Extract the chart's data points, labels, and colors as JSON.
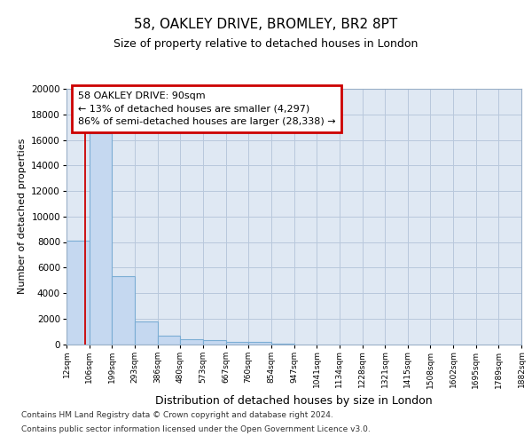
{
  "title_line1": "58, OAKLEY DRIVE, BROMLEY, BR2 8PT",
  "title_line2": "Size of property relative to detached houses in London",
  "xlabel": "Distribution of detached houses by size in London",
  "ylabel": "Number of detached properties",
  "annotation_line1": "58 OAKLEY DRIVE: 90sqm",
  "annotation_line2": "← 13% of detached houses are smaller (4,297)",
  "annotation_line3": "86% of semi-detached houses are larger (28,338) →",
  "property_size": 90,
  "bin_edges": [
    12,
    106,
    199,
    293,
    386,
    480,
    573,
    667,
    760,
    854,
    947,
    1041,
    1134,
    1228,
    1321,
    1415,
    1508,
    1602,
    1695,
    1789,
    1882
  ],
  "bar_heights": [
    8100,
    16500,
    5300,
    1750,
    680,
    350,
    280,
    200,
    170,
    50,
    0,
    0,
    0,
    0,
    0,
    0,
    0,
    0,
    0,
    0
  ],
  "bar_color": "#c5d8f0",
  "bar_edge_color": "#7badd4",
  "vline_color": "#cc0000",
  "annotation_box_edgecolor": "#cc0000",
  "plot_bg_color": "#dfe8f3",
  "background_color": "#ffffff",
  "grid_color": "#b8c8dc",
  "ylim_max": 20000,
  "yticks": [
    0,
    2000,
    4000,
    6000,
    8000,
    10000,
    12000,
    14000,
    16000,
    18000,
    20000
  ],
  "footer_line1": "Contains HM Land Registry data © Crown copyright and database right 2024.",
  "footer_line2": "Contains public sector information licensed under the Open Government Licence v3.0."
}
